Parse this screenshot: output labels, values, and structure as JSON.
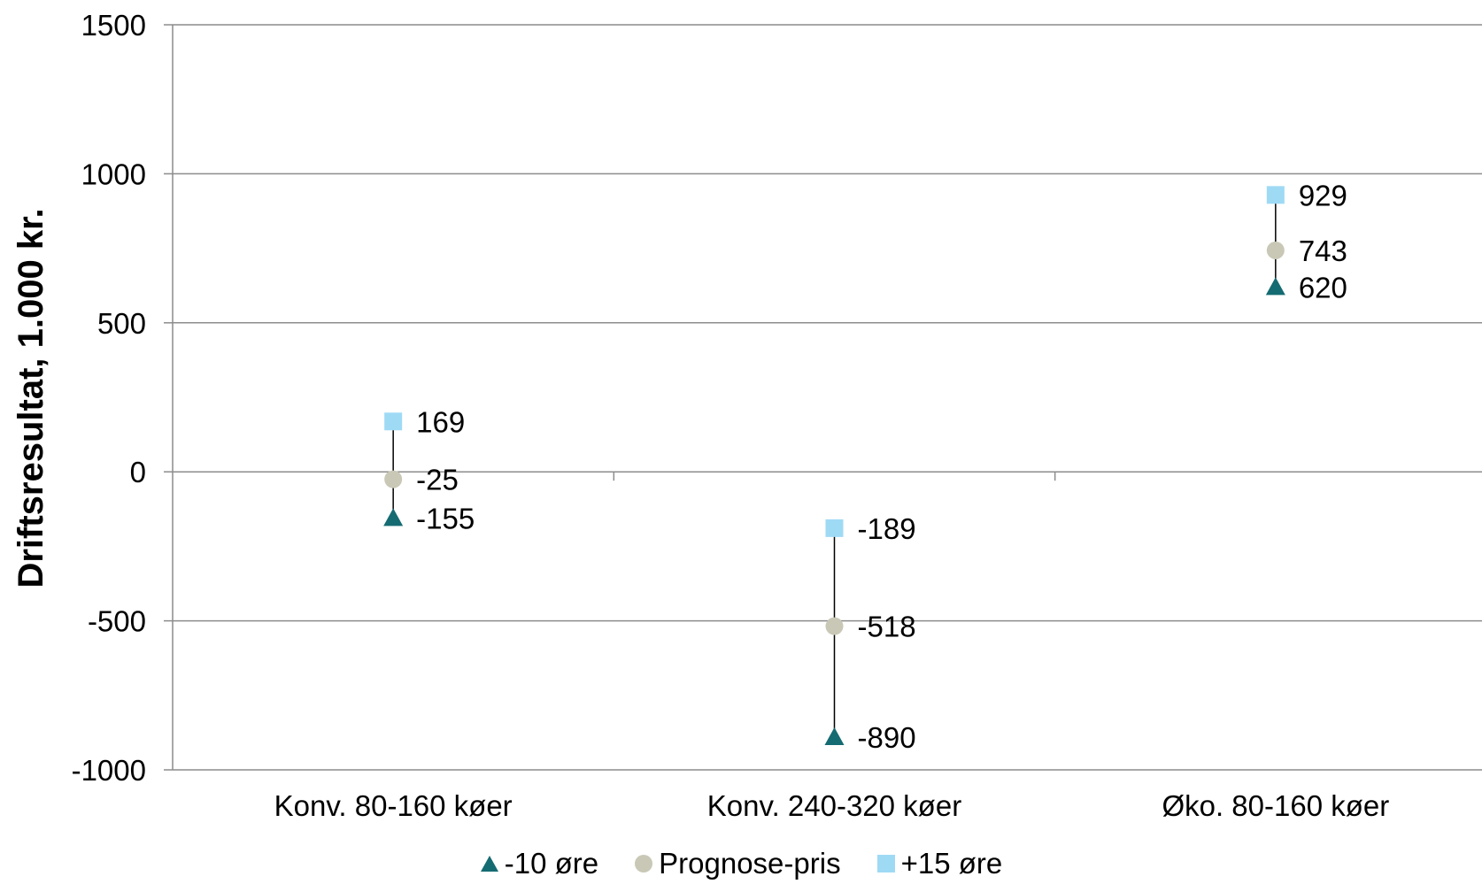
{
  "chart_data": {
    "type": "range-dot",
    "ylabel": "Driftsresultat, 1.000 kr.",
    "xlabel": "",
    "title": "",
    "ylim": [
      -1000,
      1500
    ],
    "yticks": [
      -1000,
      -500,
      0,
      500,
      1000,
      1500
    ],
    "ytick_labels": [
      "-1000",
      "-500",
      "0",
      "500",
      "1000",
      "1500"
    ],
    "grid": true,
    "legend_position": "bottom",
    "categories": [
      "Konv. 80-160 køer",
      "Konv. 240-320 køer",
      "Øko. 80-160 køer"
    ],
    "series": [
      {
        "name": "-10 øre",
        "marker": "triangle",
        "color": "#156b72",
        "values": [
          -155,
          -890,
          620
        ],
        "labels": [
          "-155",
          "-890",
          "620"
        ]
      },
      {
        "name": "Prognose-pris",
        "marker": "circle",
        "color": "#c9c8b6",
        "values": [
          -25,
          -518,
          743
        ],
        "labels": [
          "-25",
          "-518",
          "743"
        ]
      },
      {
        "name": "+15 øre",
        "marker": "square",
        "color": "#9fdaf5",
        "values": [
          169,
          -189,
          929
        ],
        "labels": [
          "169",
          "-189",
          "929"
        ]
      }
    ]
  },
  "colors": {
    "grid": "#8c8c8c",
    "axis": "#8c8c8c",
    "connector": "#000000"
  }
}
